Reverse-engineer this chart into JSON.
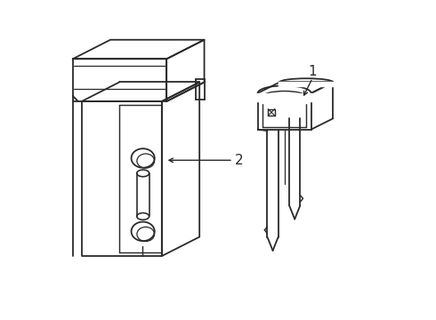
{
  "background_color": "#ffffff",
  "line_color": "#2a2a2a",
  "line_width": 1.3,
  "label1_text": "1",
  "label2_text": "2",
  "figsize": [
    4.9,
    3.6
  ],
  "dpi": 100
}
